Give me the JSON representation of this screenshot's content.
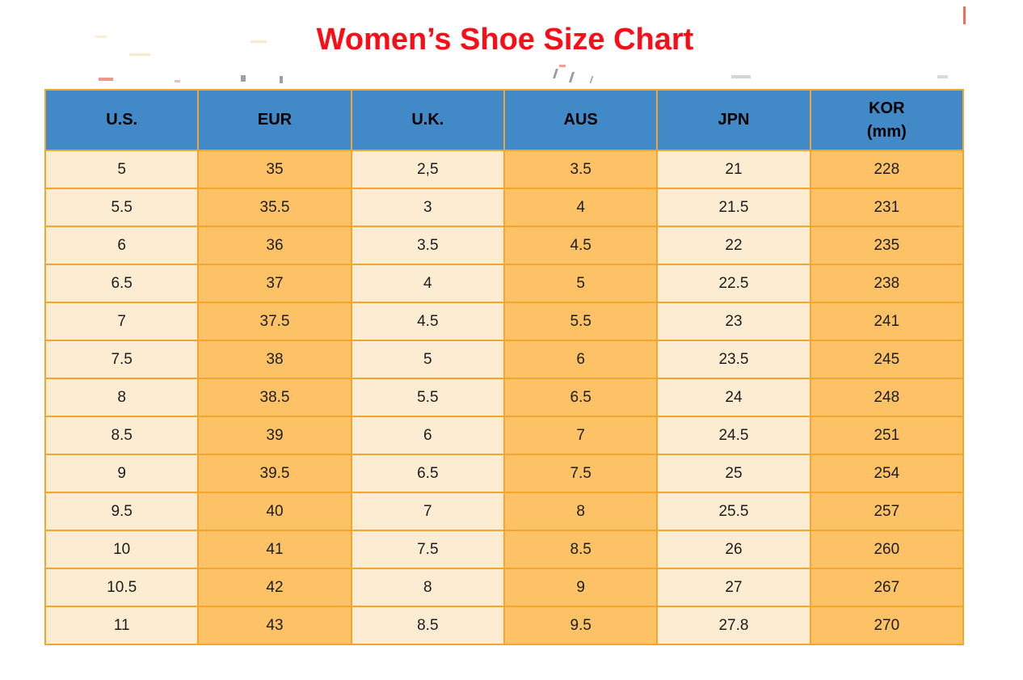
{
  "title": {
    "text": "Women’s Shoe Size Chart"
  },
  "colors": {
    "header_bg": "#4289c7",
    "border": "#f2a62e",
    "cell_light": "#fcecd1",
    "cell_dark": "#fdc266",
    "header_text": "#000000",
    "cell_text": "#1d1d1d",
    "title_text": "#fb0d17"
  },
  "chart_data": {
    "type": "table",
    "title": "Women’s Shoe Size Chart",
    "columns": [
      {
        "label": "U.S.",
        "shade": "light"
      },
      {
        "label": "EUR",
        "shade": "dark"
      },
      {
        "label": "U.K.",
        "shade": "light"
      },
      {
        "label": "AUS",
        "shade": "dark"
      },
      {
        "label": "JPN",
        "shade": "light"
      },
      {
        "label": "KOR",
        "sublabel": "(mm)",
        "shade": "dark"
      }
    ],
    "rows": [
      [
        "5",
        "35",
        "2,5",
        "3.5",
        "21",
        "228"
      ],
      [
        "5.5",
        "35.5",
        "3",
        "4",
        "21.5",
        "231"
      ],
      [
        "6",
        "36",
        "3.5",
        "4.5",
        "22",
        "235"
      ],
      [
        "6.5",
        "37",
        "4",
        "5",
        "22.5",
        "238"
      ],
      [
        "7",
        "37.5",
        "4.5",
        "5.5",
        "23",
        "241"
      ],
      [
        "7.5",
        "38",
        "5",
        "6",
        "23.5",
        "245"
      ],
      [
        "8",
        "38.5",
        "5.5",
        "6.5",
        "24",
        "248"
      ],
      [
        "8.5",
        "39",
        "6",
        "7",
        "24.5",
        "251"
      ],
      [
        "9",
        "39.5",
        "6.5",
        "7.5",
        "25",
        "254"
      ],
      [
        "9.5",
        "40",
        "7",
        "8",
        "25.5",
        "257"
      ],
      [
        "10",
        "41",
        "7.5",
        "8.5",
        "26",
        "260"
      ],
      [
        "10.5",
        "42",
        "8",
        "9",
        "27",
        "267"
      ],
      [
        "11",
        "43",
        "8.5",
        "9.5",
        "27.8",
        "270"
      ]
    ]
  }
}
